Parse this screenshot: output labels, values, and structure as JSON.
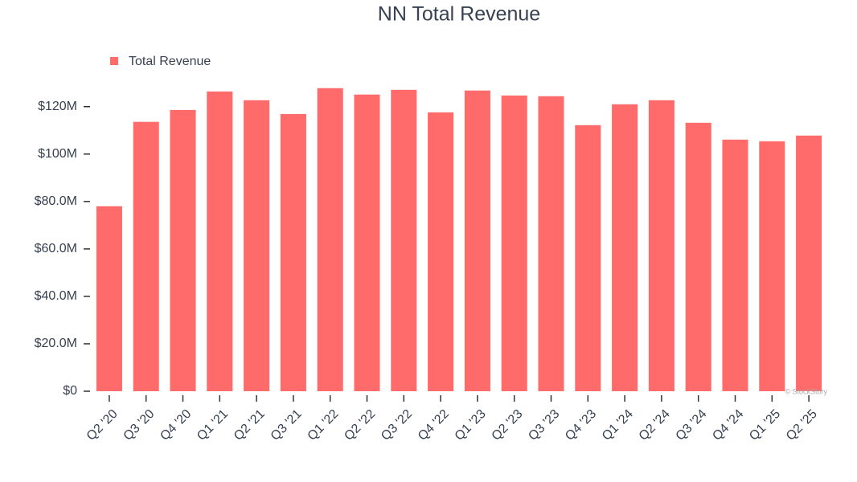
{
  "chart_data": {
    "type": "bar",
    "title": "NN Total Revenue",
    "categories": [
      "Q2 '20",
      "Q3 '20",
      "Q4 '20",
      "Q1 '21",
      "Q2 '21",
      "Q3 '21",
      "Q1 '22",
      "Q2 '22",
      "Q3 '22",
      "Q4 '22",
      "Q1 '23",
      "Q2 '23",
      "Q3 '23",
      "Q4 '23",
      "Q1 '24",
      "Q2 '24",
      "Q3 '24",
      "Q4 '24",
      "Q1 '25",
      "Q2 '25"
    ],
    "series": [
      {
        "name": "Total Revenue",
        "color": "#ff6b6b",
        "values": [
          78000000,
          113600000,
          118600000,
          126400000,
          122700000,
          116900000,
          127800000,
          125100000,
          127100000,
          117600000,
          126800000,
          124700000,
          124400000,
          112200000,
          121000000,
          122700000,
          113200000,
          106100000,
          105400000,
          107800000
        ]
      }
    ],
    "ylim": [
      0,
      125000000
    ],
    "yticks": [
      {
        "value": 0,
        "label": "$0"
      },
      {
        "value": 20000000,
        "label": "$20.0M"
      },
      {
        "value": 40000000,
        "label": "$40.0M"
      },
      {
        "value": 60000000,
        "label": "$60.0M"
      },
      {
        "value": 80000000,
        "label": "$80.0M"
      },
      {
        "value": 100000000,
        "label": "$100M"
      },
      {
        "value": 120000000,
        "label": "$120M"
      }
    ],
    "grid": false,
    "legend": "top-left",
    "watermark": "© StockStory"
  }
}
